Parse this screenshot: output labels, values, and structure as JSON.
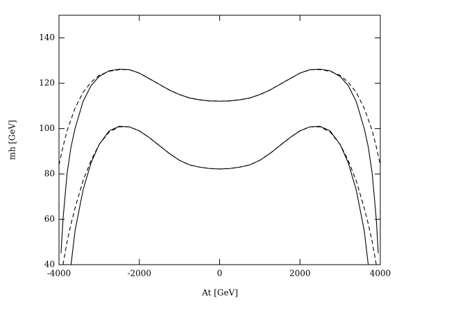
{
  "chart_data": {
    "type": "line",
    "x_label": "At [GeV]",
    "y_label": "mh [GeV]",
    "x": [
      -4000,
      -3950,
      -3900,
      -3800,
      -3700,
      -3600,
      -3400,
      -3200,
      -3000,
      -2750,
      -2500,
      -2250,
      -2000,
      -1750,
      -1500,
      -1250,
      -1000,
      -750,
      -500,
      -250,
      0,
      250,
      500,
      750,
      1000,
      1250,
      1500,
      1750,
      2000,
      2250,
      2500,
      2750,
      3000,
      3200,
      3400,
      3600,
      3700,
      3800,
      3900,
      3950,
      4000
    ],
    "series": [
      {
        "color": "#000000",
        "dashed": false,
        "values": [
          null,
          45,
          60,
          80,
          92,
          100,
          112,
          119,
          123,
          125.5,
          126.2,
          126,
          124.5,
          122,
          119.5,
          117,
          115,
          113.5,
          112.7,
          112.2,
          112.1,
          112.2,
          112.7,
          113.5,
          115,
          117,
          119.5,
          122,
          124.5,
          126,
          126.2,
          125.5,
          123,
          119,
          112,
          100,
          92,
          80,
          60,
          45,
          null
        ]
      },
      {
        "color": "#000000",
        "dashed": true,
        "values": [
          84,
          88,
          92,
          99,
          104,
          109,
          116,
          120.5,
          123.5,
          125.3,
          126,
          126,
          124.5,
          122,
          119.5,
          117,
          115,
          113.5,
          112.7,
          112.2,
          112.1,
          112.2,
          112.7,
          113.5,
          115,
          117,
          119.5,
          122,
          124.5,
          126,
          126,
          125.3,
          123.5,
          120.5,
          116,
          109,
          104,
          99,
          92,
          88,
          84
        ]
      },
      {
        "color": "#000000",
        "dashed": false,
        "values": [
          null,
          null,
          null,
          null,
          40,
          55,
          73,
          85,
          93,
          99,
          101,
          100.8,
          99,
          96,
          92.5,
          89,
          86,
          84,
          83,
          82.4,
          82.2,
          82.4,
          83,
          84,
          86,
          89,
          92.5,
          96,
          99,
          100.8,
          101,
          99,
          93,
          85,
          73,
          55,
          40,
          null,
          null,
          null,
          null
        ]
      },
      {
        "color": "#000000",
        "dashed": true,
        "values": [
          null,
          null,
          40,
          50,
          58,
          65,
          77,
          86,
          93,
          98.5,
          100.8,
          100.8,
          99,
          96,
          92.5,
          89,
          86,
          84,
          83,
          82.4,
          82.2,
          82.4,
          83,
          84,
          86,
          89,
          92.5,
          96,
          99,
          100.8,
          100.8,
          98.5,
          93,
          86,
          77,
          65,
          58,
          50,
          40,
          null,
          null
        ]
      }
    ],
    "xlim": [
      -4000,
      4000
    ],
    "xticks": [
      -4000,
      -2000,
      0,
      2000,
      4000
    ],
    "ylim": [
      40,
      150
    ],
    "yticks": [
      40,
      60,
      80,
      100,
      120,
      140
    ]
  }
}
